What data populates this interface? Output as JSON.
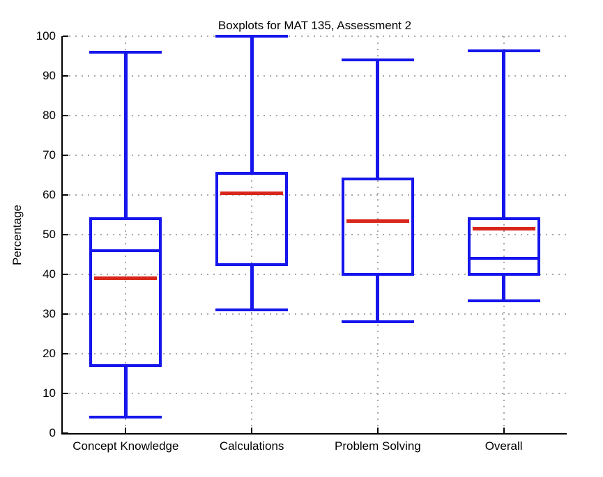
{
  "chart_data": {
    "type": "boxplot",
    "title": "Boxplots for MAT 135, Assessment 2",
    "ylabel": "Percentage",
    "xlabel": "",
    "ylim": [
      0,
      100
    ],
    "yticks": [
      0,
      10,
      20,
      30,
      40,
      50,
      60,
      70,
      80,
      90,
      100
    ],
    "grid": {
      "horizontal": true,
      "vertical": true,
      "style": "dotted"
    },
    "legend": null,
    "categories": [
      "Concept Knowledge",
      "Calculations",
      "Problem Solving",
      "Overall"
    ],
    "boxes": [
      {
        "category": "Concept Knowledge",
        "whisker_low": 4,
        "q1": 17,
        "blue_line": 46,
        "red_line": 39,
        "q3": 54,
        "whisker_high": 96
      },
      {
        "category": "Calculations",
        "whisker_low": 31,
        "q1": 42.5,
        "blue_line": null,
        "red_line": 60.5,
        "q3": 65.5,
        "whisker_high": 100
      },
      {
        "category": "Problem Solving",
        "whisker_low": 28,
        "q1": 40,
        "blue_line": null,
        "red_line": 53.5,
        "q3": 64,
        "whisker_high": 94
      },
      {
        "category": "Overall",
        "whisker_low": 33.3,
        "q1": 40,
        "blue_line": 44,
        "red_line": 51.5,
        "q3": 54,
        "whisker_high": 96.3
      }
    ],
    "colors": {
      "box": "#1616ec",
      "red_line": "#d9261a",
      "grid": "#a8a8a8",
      "axis": "#000000",
      "text": "#000000",
      "background": "#ffffff"
    }
  }
}
